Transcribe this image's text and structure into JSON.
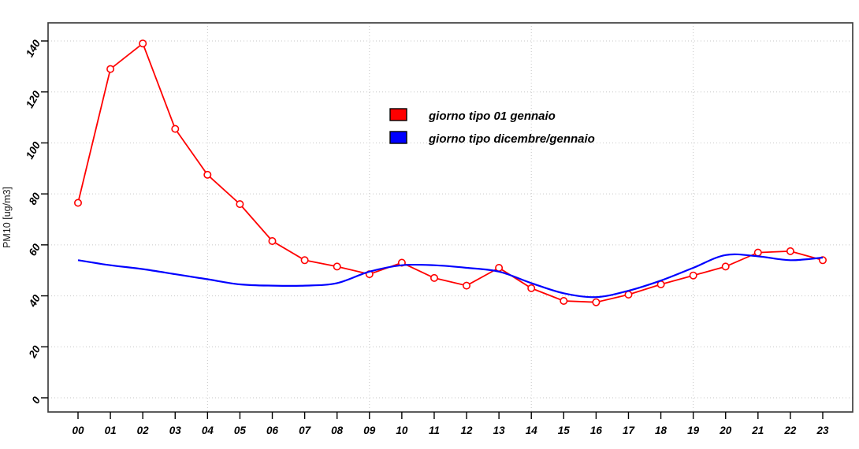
{
  "chart_data": {
    "type": "line",
    "title": "",
    "xlabel": "",
    "ylabel": "PM10 [ug/m3]",
    "categories": [
      "00",
      "01",
      "02",
      "03",
      "04",
      "05",
      "06",
      "07",
      "08",
      "09",
      "10",
      "11",
      "12",
      "13",
      "14",
      "15",
      "16",
      "17",
      "18",
      "19",
      "20",
      "21",
      "22",
      "23"
    ],
    "series": [
      {
        "name": "giorno tipo 01 gennaio",
        "color": "#ff0000",
        "marker": "open-circle",
        "style": "segmented",
        "values": [
          76.5,
          129,
          139,
          105.5,
          87.5,
          76,
          61.5,
          54,
          51.5,
          48.5,
          53,
          47,
          44,
          51,
          43,
          38,
          37.5,
          40.5,
          44.5,
          48,
          51.5,
          57,
          57.5,
          54
        ]
      },
      {
        "name": "giorno tipo dicembre/gennaio",
        "color": "#0000ff",
        "marker": "none",
        "style": "smooth",
        "values": [
          54,
          52,
          50.5,
          48.5,
          46.5,
          44.5,
          44,
          44,
          45,
          49.5,
          52,
          52,
          51,
          49.5,
          45,
          41,
          39.5,
          42,
          46,
          51,
          56,
          55.5,
          54,
          55
        ]
      }
    ],
    "ylim": [
      0,
      140
    ],
    "yticks": [
      0,
      20,
      40,
      60,
      80,
      100,
      120,
      140
    ],
    "grid": {
      "style": "dotted",
      "color": "#c6c6c6",
      "x_at_categories": [
        "04",
        "09",
        "14",
        "19"
      ]
    },
    "legend_position": "top-center",
    "colors": {
      "box_border": "#3f3f3f",
      "tick": "#000000",
      "background": "#ffffff"
    }
  }
}
